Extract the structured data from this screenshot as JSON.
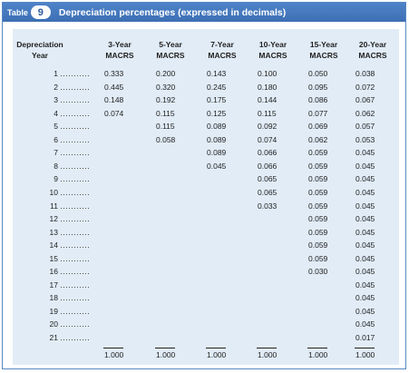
{
  "table": {
    "tab_word": "Table",
    "number": "9",
    "caption": "Depreciation percentages (expressed in decimals)",
    "headers": [
      "Depreciation Year",
      "3-Year MACRS",
      "5-Year MACRS",
      "7-Year MACRS",
      "10-Year MACRS",
      "15-Year MACRS",
      "20-Year MACRS"
    ],
    "years": [
      "1",
      "2",
      "3",
      "4",
      "5",
      "6",
      "7",
      "8",
      "9",
      "10",
      "11",
      "12",
      "13",
      "14",
      "15",
      "16",
      "17",
      "18",
      "19",
      "20",
      "21"
    ],
    "columns": [
      [
        "0.333",
        "0.445",
        "0.148",
        "0.074"
      ],
      [
        "0.200",
        "0.320",
        "0.192",
        "0.115",
        "0.115",
        "0.058"
      ],
      [
        "0.143",
        "0.245",
        "0.175",
        "0.125",
        "0.089",
        "0.089",
        "0.089",
        "0.045"
      ],
      [
        "0.100",
        "0.180",
        "0.144",
        "0.115",
        "0.092",
        "0.074",
        "0.066",
        "0.066",
        "0.065",
        "0.065",
        "0.033"
      ],
      [
        "0.050",
        "0.095",
        "0.086",
        "0.077",
        "0.069",
        "0.062",
        "0.059",
        "0.059",
        "0.059",
        "0.059",
        "0.059",
        "0.059",
        "0.059",
        "0.059",
        "0.059",
        "0.030"
      ],
      [
        "0.038",
        "0.072",
        "0.067",
        "0.062",
        "0.057",
        "0.053",
        "0.045",
        "0.045",
        "0.045",
        "0.045",
        "0.045",
        "0.045",
        "0.045",
        "0.045",
        "0.045",
        "0.045",
        "0.045",
        "0.045",
        "0.045",
        "0.045",
        "0.017"
      ]
    ],
    "totals": [
      "1.000",
      "1.000",
      "1.000",
      "1.000",
      "1.000",
      "1.000"
    ]
  }
}
